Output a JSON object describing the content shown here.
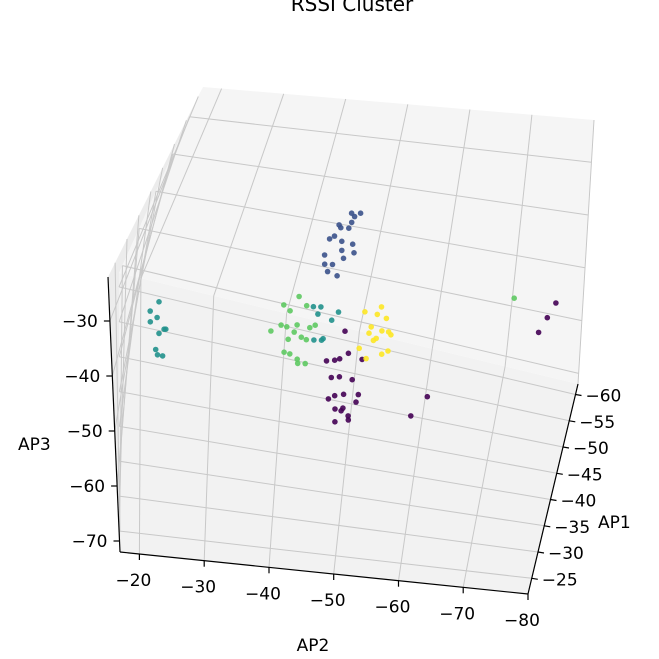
{
  "chart_data": {
    "type": "scatter",
    "projection": "3d",
    "title": "RSSI Cluster",
    "xlabel": "AP1",
    "ylabel": "AP2",
    "zlabel": "AP3",
    "xlim": [
      -62,
      -22
    ],
    "ylim": [
      -80,
      -17
    ],
    "zlim": [
      -72,
      -22
    ],
    "x_ticks": [
      "−25",
      "−30",
      "−35",
      "−40",
      "−45",
      "−50",
      "−55",
      "−60"
    ],
    "y_ticks": [
      "−20",
      "−30",
      "−40",
      "−50",
      "−60",
      "−70",
      "−80"
    ],
    "z_ticks": [
      "−30",
      "−40",
      "−50",
      "−60",
      "−70"
    ],
    "grid": true,
    "colormap": "viridis",
    "colors": [
      "#440154",
      "#3b528b",
      "#21918c",
      "#5ec962",
      "#fde725"
    ],
    "clusters": [
      {
        "color": "#440154",
        "points": [
          [
            -35,
            -48,
            -55
          ],
          [
            -36,
            -49,
            -53
          ],
          [
            -37,
            -50,
            -51
          ],
          [
            -38,
            -48,
            -52
          ],
          [
            -36,
            -47,
            -50
          ],
          [
            -34,
            -49,
            -54
          ],
          [
            -39,
            -51,
            -49
          ],
          [
            -35,
            -50,
            -56
          ],
          [
            -37,
            -46,
            -48
          ],
          [
            -38,
            -49,
            -47
          ],
          [
            -36,
            -50,
            -58
          ],
          [
            -34,
            -47,
            -52
          ],
          [
            -40,
            -48,
            -45
          ],
          [
            -35,
            -51,
            -53
          ],
          [
            -37,
            -49,
            -57
          ],
          [
            -39,
            -47,
            -50
          ],
          [
            -36,
            -48,
            -46
          ],
          [
            -38,
            -51,
            -55
          ],
          [
            -33,
            -48,
            -50
          ],
          [
            -37,
            -48,
            -60
          ],
          [
            -45,
            -77,
            -42
          ],
          [
            -46,
            -78,
            -40
          ],
          [
            -44,
            -76,
            -44
          ],
          [
            -30,
            -62,
            -44
          ],
          [
            -28,
            -60,
            -46
          ]
        ]
      },
      {
        "color": "#3b528b",
        "points": [
          [
            -40,
            -45,
            -26
          ],
          [
            -41,
            -46,
            -28
          ],
          [
            -42,
            -47,
            -25
          ],
          [
            -39,
            -44,
            -29
          ],
          [
            -40,
            -47,
            -24
          ],
          [
            -43,
            -45,
            -27
          ],
          [
            -41,
            -48,
            -30
          ],
          [
            -42,
            -46,
            -31
          ],
          [
            -39,
            -46,
            -23
          ],
          [
            -40,
            -44,
            -32
          ],
          [
            -44,
            -47,
            -26
          ],
          [
            -41,
            -45,
            -33
          ],
          [
            -38,
            -47,
            -28
          ],
          [
            -42,
            -44,
            -29
          ],
          [
            -43,
            -48,
            -24
          ],
          [
            -40,
            -46,
            -34
          ],
          [
            -39,
            -48,
            -26
          ],
          [
            -41,
            -47,
            -22
          ],
          [
            -37,
            -45,
            -30
          ]
        ]
      },
      {
        "color": "#21918c",
        "points": [
          [
            -25,
            -23,
            -31
          ],
          [
            -25,
            -24,
            -33
          ],
          [
            -26,
            -23,
            -35
          ],
          [
            -25,
            -22,
            -32
          ],
          [
            -26,
            -24,
            -34
          ],
          [
            -24,
            -23,
            -36
          ],
          [
            -25,
            -22,
            -30
          ],
          [
            -26,
            -23,
            -29
          ],
          [
            -24,
            -24,
            -37
          ],
          [
            -25,
            -23,
            -38
          ],
          [
            -38,
            -44,
            -40
          ],
          [
            -39,
            -46,
            -42
          ],
          [
            -37,
            -45,
            -44
          ],
          [
            -40,
            -43,
            -41
          ],
          [
            -38,
            -47,
            -39
          ],
          [
            -36,
            -44,
            -43
          ],
          [
            -39,
            -45,
            -46
          ],
          [
            -41,
            -44,
            -42
          ]
        ]
      },
      {
        "color": "#5ec962",
        "points": [
          [
            -36,
            -41,
            -42
          ],
          [
            -37,
            -42,
            -44
          ],
          [
            -35,
            -40,
            -40
          ],
          [
            -38,
            -43,
            -43
          ],
          [
            -36,
            -39,
            -41
          ],
          [
            -34,
            -42,
            -45
          ],
          [
            -37,
            -40,
            -39
          ],
          [
            -35,
            -43,
            -42
          ],
          [
            -39,
            -41,
            -44
          ],
          [
            -36,
            -44,
            -40
          ],
          [
            -38,
            -40,
            -46
          ],
          [
            -33,
            -41,
            -43
          ],
          [
            -37,
            -39,
            -38
          ],
          [
            -35,
            -42,
            -47
          ],
          [
            -40,
            -42,
            -41
          ],
          [
            -34,
            -40,
            -44
          ],
          [
            -36,
            -43,
            -48
          ],
          [
            -38,
            -41,
            -37
          ],
          [
            -44,
            -72,
            -38
          ],
          [
            -33,
            -38,
            -39
          ]
        ]
      },
      {
        "color": "#fde725",
        "points": [
          [
            -36,
            -52,
            -40
          ],
          [
            -37,
            -53,
            -42
          ],
          [
            -35,
            -54,
            -38
          ],
          [
            -38,
            -52,
            -41
          ],
          [
            -36,
            -55,
            -43
          ],
          [
            -34,
            -53,
            -39
          ],
          [
            -37,
            -51,
            -37
          ],
          [
            -35,
            -52,
            -44
          ],
          [
            -39,
            -54,
            -40
          ],
          [
            -36,
            -53,
            -36
          ],
          [
            -38,
            -55,
            -42
          ],
          [
            -34,
            -51,
            -41
          ],
          [
            -37,
            -54,
            -45
          ],
          [
            -35,
            -55,
            -38
          ],
          [
            -40,
            -53,
            -39
          ]
        ]
      }
    ]
  }
}
